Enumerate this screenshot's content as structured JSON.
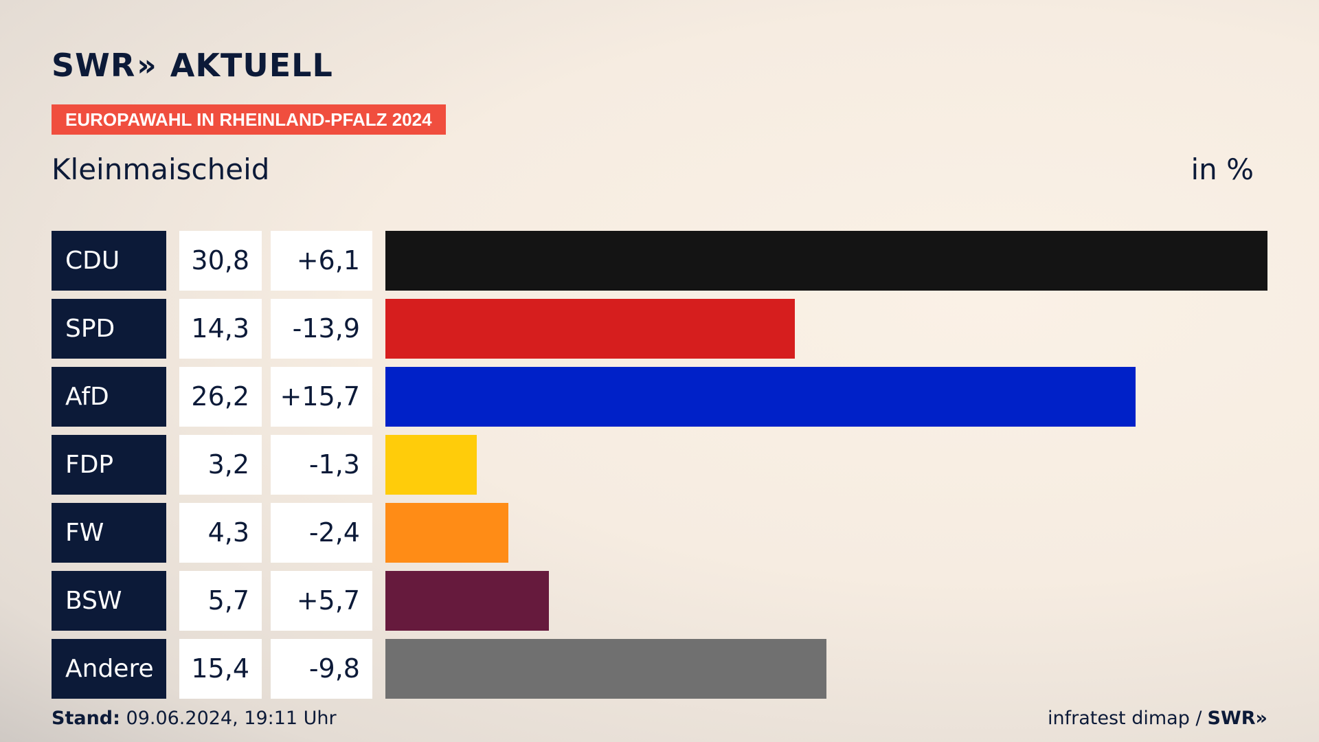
{
  "header": {
    "brand_swr": "SWR",
    "brand_chevrons": "»",
    "brand_aktuell": "AKTUELL",
    "badge": "EUROPAWAHL IN RHEINLAND-PFALZ 2024",
    "location": "Kleinmaischeid",
    "unit": "in %"
  },
  "chart_data": {
    "type": "bar",
    "orientation": "horizontal",
    "title": "Kleinmaischeid",
    "categories": [
      "CDU",
      "SPD",
      "AfD",
      "FDP",
      "FW",
      "BSW",
      "Andere"
    ],
    "values": [
      30.8,
      14.3,
      26.2,
      3.2,
      4.3,
      5.7,
      15.4
    ],
    "value_labels": [
      "30,8",
      "14,3",
      "26,2",
      "3,2",
      "4,3",
      "5,7",
      "15,4"
    ],
    "diff_values": [
      6.1,
      -13.9,
      15.7,
      -1.3,
      -2.4,
      5.7,
      -9.8
    ],
    "diff_labels": [
      "+6,1",
      "-13,9",
      "+15,7",
      "-1,3",
      "-2,4",
      "+5,7",
      "-9,8"
    ],
    "colors": [
      "#141414",
      "#d61e1e",
      "#0021c8",
      "#ffcc0a",
      "#ff8c16",
      "#661a3d",
      "#707070"
    ],
    "xlim": [
      0,
      30.8
    ]
  },
  "footer": {
    "stand_label": "Stand:",
    "stand_value": "09.06.2024, 19:11 Uhr",
    "source": "infratest dimap /",
    "source_logo": "SWR»"
  }
}
